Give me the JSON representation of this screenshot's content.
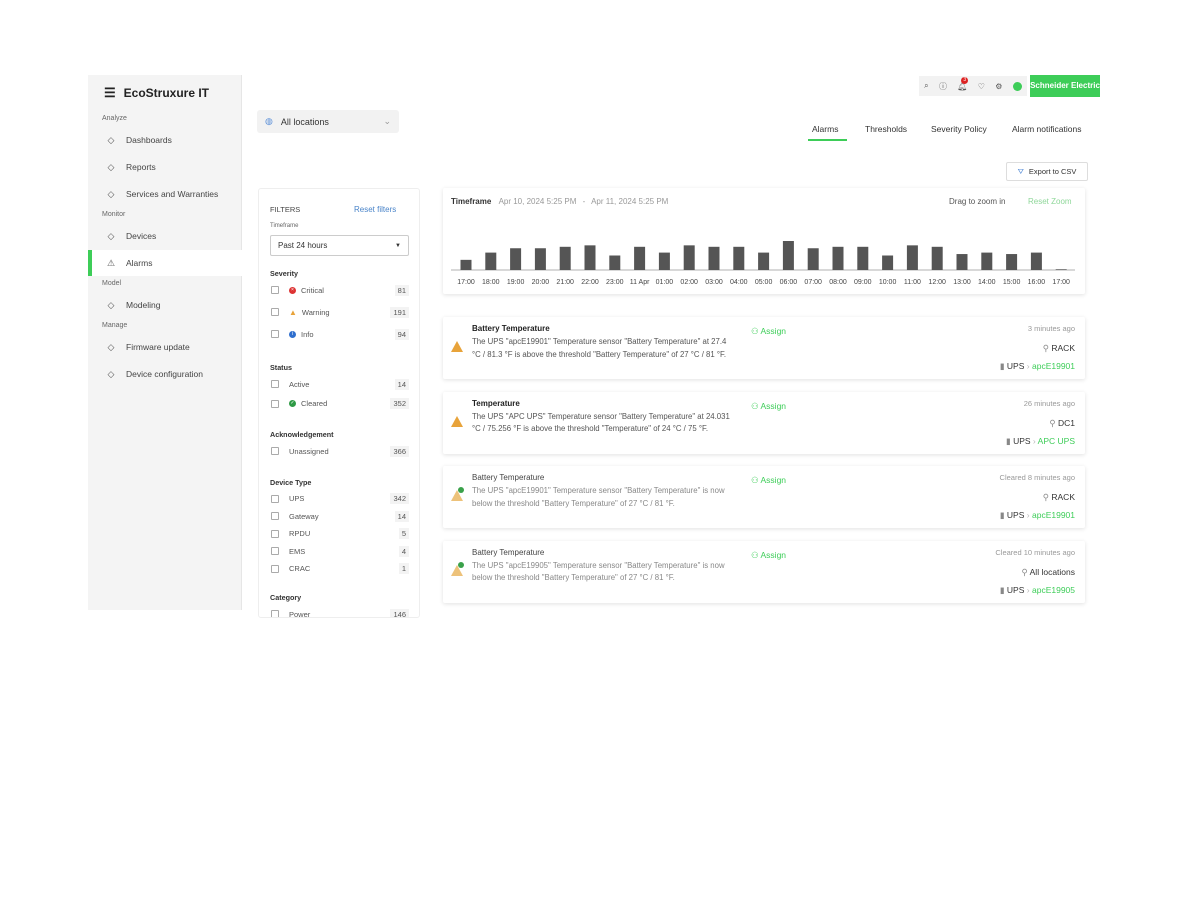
{
  "app": {
    "logo": "EcoStruxure IT",
    "brand": "Schneider Electric",
    "accent": "#3dcd58"
  },
  "sidebar": {
    "sections": [
      {
        "label": "Analyze",
        "items": [
          {
            "label": "Dashboards",
            "icon": "dashboard-icon"
          },
          {
            "label": "Reports",
            "icon": "report-icon"
          },
          {
            "label": "Services and Warranties",
            "icon": "services-icon"
          }
        ]
      },
      {
        "label": "Monitor",
        "items": [
          {
            "label": "Devices",
            "icon": "device-icon"
          },
          {
            "label": "Alarms",
            "icon": "alarm-icon",
            "active": true
          }
        ]
      },
      {
        "label": "Model",
        "items": [
          {
            "label": "Modeling",
            "icon": "modeling-icon"
          }
        ]
      },
      {
        "label": "Manage",
        "items": [
          {
            "label": "Firmware update",
            "icon": "firmware-icon"
          },
          {
            "label": "Device configuration",
            "icon": "config-icon"
          }
        ]
      }
    ]
  },
  "header": {
    "notification_count": "3",
    "location": "All locations"
  },
  "tabs": [
    {
      "label": "Alarms",
      "active": true
    },
    {
      "label": "Thresholds"
    },
    {
      "label": "Severity Policy"
    },
    {
      "label": "Alarm notifications"
    }
  ],
  "export_label": "Export to CSV",
  "filters": {
    "title": "FILTERS",
    "reset": "Reset filters",
    "timeframe_label": "Timeframe",
    "timeframe_value": "Past 24 hours",
    "groups": [
      {
        "label": "Severity",
        "items": [
          {
            "label": "Critical",
            "count": "81",
            "icon": "critical"
          },
          {
            "label": "Warning",
            "count": "191",
            "icon": "warning"
          },
          {
            "label": "Info",
            "count": "94",
            "icon": "info"
          }
        ]
      },
      {
        "label": "Status",
        "items": [
          {
            "label": "Active",
            "count": "14"
          },
          {
            "label": "Cleared",
            "count": "352",
            "icon": "cleared"
          }
        ]
      },
      {
        "label": "Acknowledgement",
        "items": [
          {
            "label": "Unassigned",
            "count": "366"
          }
        ]
      },
      {
        "label": "Device Type",
        "items": [
          {
            "label": "UPS",
            "count": "342"
          },
          {
            "label": "Gateway",
            "count": "14"
          },
          {
            "label": "RPDU",
            "count": "5"
          },
          {
            "label": "EMS",
            "count": "4"
          },
          {
            "label": "CRAC",
            "count": "1"
          }
        ]
      },
      {
        "label": "Category",
        "items": [
          {
            "label": "Power",
            "count": "146"
          }
        ]
      }
    ]
  },
  "timeline": {
    "label": "Timeframe",
    "start": "Apr 10, 2024 5:25 PM",
    "sep": "-",
    "end": "Apr 11, 2024 5:25 PM",
    "hint": "Drag to zoom in",
    "reset": "Reset Zoom"
  },
  "chart_data": {
    "type": "bar",
    "categories": [
      "17:00",
      "18:00",
      "19:00",
      "20:00",
      "21:00",
      "22:00",
      "23:00",
      "11 Apr",
      "01:00",
      "02:00",
      "03:00",
      "04:00",
      "05:00",
      "06:00",
      "07:00",
      "08:00",
      "09:00",
      "10:00",
      "11:00",
      "12:00",
      "13:00",
      "14:00",
      "15:00",
      "16:00",
      "17:00"
    ],
    "values": [
      7,
      12,
      15,
      15,
      16,
      17,
      10,
      16,
      12,
      17,
      16,
      16,
      12,
      20,
      15,
      16,
      16,
      10,
      17,
      16,
      11,
      12,
      11,
      12,
      0.5
    ],
    "color": "#555555",
    "grid": false
  },
  "alarms": [
    {
      "title": "Battery Temperature",
      "desc": "The UPS \"apcE19901\" Temperature sensor \"Battery Temperature\" at 27.4 °C / 81.3 °F is above the threshold \"Battery Temperature\" of 27 °C / 81 °F.",
      "assign": "Assign",
      "time": "3 minutes ago",
      "location": "RACK",
      "device_type": "UPS",
      "device": "apcE19901",
      "cleared": false
    },
    {
      "title": "Temperature",
      "desc": "The UPS \"APC UPS\" Temperature sensor \"Battery Temperature\" at 24.031 °C / 75.256 °F is above the threshold \"Temperature\" of 24 °C / 75 °F.",
      "assign": "Assign",
      "time": "26 minutes ago",
      "location": "DC1",
      "device_type": "UPS",
      "device": "APC UPS",
      "cleared": false
    },
    {
      "title": "Battery Temperature",
      "desc": "The UPS \"apcE19901\" Temperature sensor \"Battery Temperature\" is now below the threshold \"Battery Temperature\" of 27 °C / 81 °F.",
      "assign": "Assign",
      "time": "Cleared 8 minutes ago",
      "location": "RACK",
      "device_type": "UPS",
      "device": "apcE19901",
      "cleared": true
    },
    {
      "title": "Battery Temperature",
      "desc": "The UPS \"apcE19905\" Temperature sensor \"Battery Temperature\" is now below the threshold \"Battery Temperature\" of 27 °C / 81 °F.",
      "assign": "Assign",
      "time": "Cleared 10 minutes ago",
      "location": "All locations",
      "device_type": "UPS",
      "device": "apcE19905",
      "cleared": true
    }
  ]
}
